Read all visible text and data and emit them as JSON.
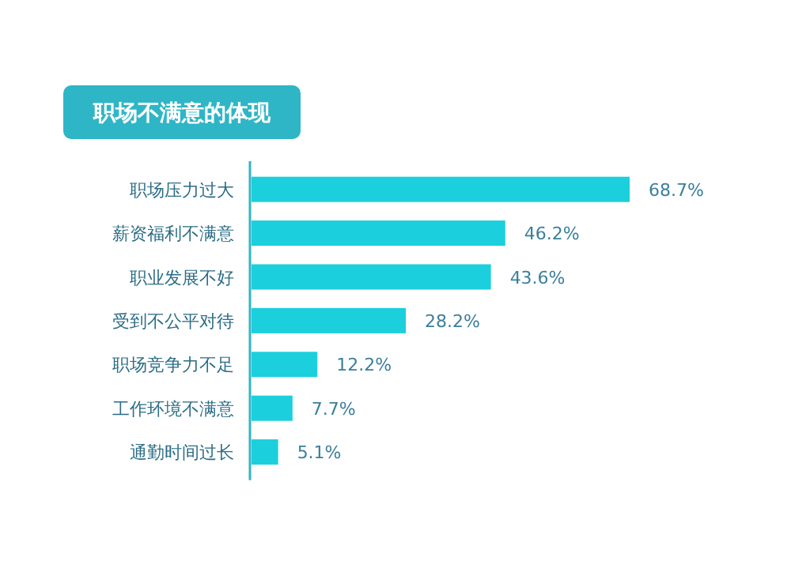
{
  "chart_data": {
    "type": "bar",
    "orientation": "horizontal",
    "title": "职场不满意的体现",
    "categories": [
      "职场压力过大",
      "薪资福利不满意",
      "职业发展不好",
      "受到不公平对待",
      "职场竞争力不足",
      "工作环境不满意",
      "通勤时间过长"
    ],
    "values": [
      68.7,
      46.2,
      43.6,
      28.2,
      12.2,
      7.7,
      5.1
    ],
    "value_labels": [
      "68.7%",
      "46.2%",
      "43.6%",
      "28.2%",
      "12.2%",
      "7.7%",
      "5.1%"
    ],
    "color": "#1ccfdc"
  }
}
